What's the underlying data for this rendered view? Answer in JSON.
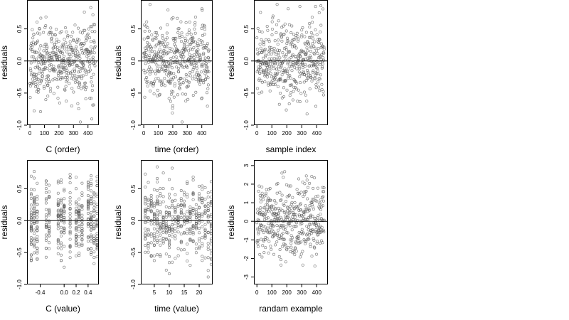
{
  "colors": {
    "point": "#555555",
    "frame": "#000000",
    "zero_line": "#000000",
    "background": "#ffffff"
  },
  "chart_data": [
    {
      "type": "scatter",
      "xlabel": "C (order)",
      "ylabel": "residuals",
      "xlim": [
        -20,
        475
      ],
      "ylim": [
        -1.0,
        0.95
      ],
      "xticks": [
        0,
        100,
        200,
        300,
        400
      ],
      "yticks": [
        -1.0,
        -0.5,
        0.0,
        0.5
      ],
      "ytick_labels": [
        "-1.0",
        "-0.5",
        "0.0",
        "0.5"
      ],
      "reference_line_y": 0,
      "n_points": 450,
      "x_pattern": "index",
      "x_range": [
        0,
        450
      ],
      "y_sd": 0.3,
      "y_range": [
        -0.95,
        0.88
      ],
      "seed": 11
    },
    {
      "type": "scatter",
      "xlabel": "time (order)",
      "ylabel": "residuals",
      "xlim": [
        -20,
        475
      ],
      "ylim": [
        -1.0,
        0.95
      ],
      "xticks": [
        0,
        100,
        200,
        300,
        400
      ],
      "yticks": [
        -1.0,
        -0.5,
        0.0,
        0.5
      ],
      "ytick_labels": [
        "-1.0",
        "-0.5",
        "0.0",
        "0.5"
      ],
      "reference_line_y": 0,
      "n_points": 450,
      "x_pattern": "index",
      "x_range": [
        0,
        450
      ],
      "y_sd": 0.3,
      "y_range": [
        -0.95,
        0.88
      ],
      "seed": 23
    },
    {
      "type": "scatter",
      "xlabel": "sample index",
      "ylabel": "residuals",
      "xlim": [
        -20,
        475
      ],
      "ylim": [
        -1.0,
        0.95
      ],
      "xticks": [
        0,
        100,
        200,
        300,
        400
      ],
      "yticks": [
        -1.0,
        -0.5,
        0.0,
        0.5
      ],
      "ytick_labels": [
        "-1.0",
        "-0.5",
        "0.0",
        "0.5"
      ],
      "reference_line_y": 0,
      "n_points": 450,
      "x_pattern": "index",
      "x_range": [
        0,
        450
      ],
      "y_sd": 0.3,
      "y_range": [
        -0.95,
        0.88
      ],
      "seed": 37
    },
    {
      "type": "scatter",
      "xlabel": "C (value)",
      "ylabel": "residuals",
      "xlim": [
        -0.62,
        0.58
      ],
      "ylim": [
        -1.0,
        0.95
      ],
      "xticks": [
        -0.4,
        0.0,
        0.2,
        0.4
      ],
      "xtick_labels": [
        "-0.4",
        "0.0",
        "0.2",
        "0.4"
      ],
      "yticks": [
        -1.0,
        -0.5,
        0.0,
        0.5
      ],
      "ytick_labels": [
        "-1.0",
        "-0.5",
        "0.0",
        "0.5"
      ],
      "reference_line_y": 0,
      "n_points": 450,
      "x_pattern": "levels",
      "x_levels": [
        -0.55,
        -0.5,
        -0.45,
        -0.3,
        -0.25,
        -0.1,
        -0.05,
        0.0,
        0.1,
        0.2,
        0.25,
        0.3,
        0.4,
        0.45,
        0.5,
        0.55
      ],
      "y_sd": 0.3,
      "y_range": [
        -0.95,
        0.88
      ],
      "seed": 51
    },
    {
      "type": "scatter",
      "xlabel": "time (value)",
      "ylabel": "residuals",
      "xlim": [
        0.5,
        24.5
      ],
      "ylim": [
        -1.0,
        0.95
      ],
      "xticks": [
        5,
        10,
        15,
        20
      ],
      "yticks": [
        -1.0,
        -0.5,
        0.0,
        0.5
      ],
      "ytick_labels": [
        "-1.0",
        "-0.5",
        "0.0",
        "0.5"
      ],
      "reference_line_y": 0,
      "n_points": 450,
      "x_pattern": "levels",
      "x_levels": [
        2,
        3,
        4,
        5,
        6,
        7,
        8,
        9,
        10,
        11,
        12,
        13,
        14,
        15,
        16,
        17,
        18,
        19,
        20,
        21,
        22,
        23,
        24
      ],
      "y_sd": 0.3,
      "y_range": [
        -0.95,
        0.88
      ],
      "seed": 67
    },
    {
      "type": "scatter",
      "xlabel": "randam example",
      "ylabel": "residuals",
      "xlim": [
        -20,
        475
      ],
      "ylim": [
        -3.4,
        3.3
      ],
      "xticks": [
        0,
        100,
        200,
        300,
        400
      ],
      "yticks": [
        -3,
        -2,
        -1,
        0,
        1,
        2,
        3
      ],
      "reference_line_y": 0,
      "n_points": 450,
      "x_pattern": "index",
      "x_range": [
        0,
        450
      ],
      "y_sd": 1.0,
      "y_range": [
        -3.2,
        3.0
      ],
      "seed": 83
    }
  ]
}
